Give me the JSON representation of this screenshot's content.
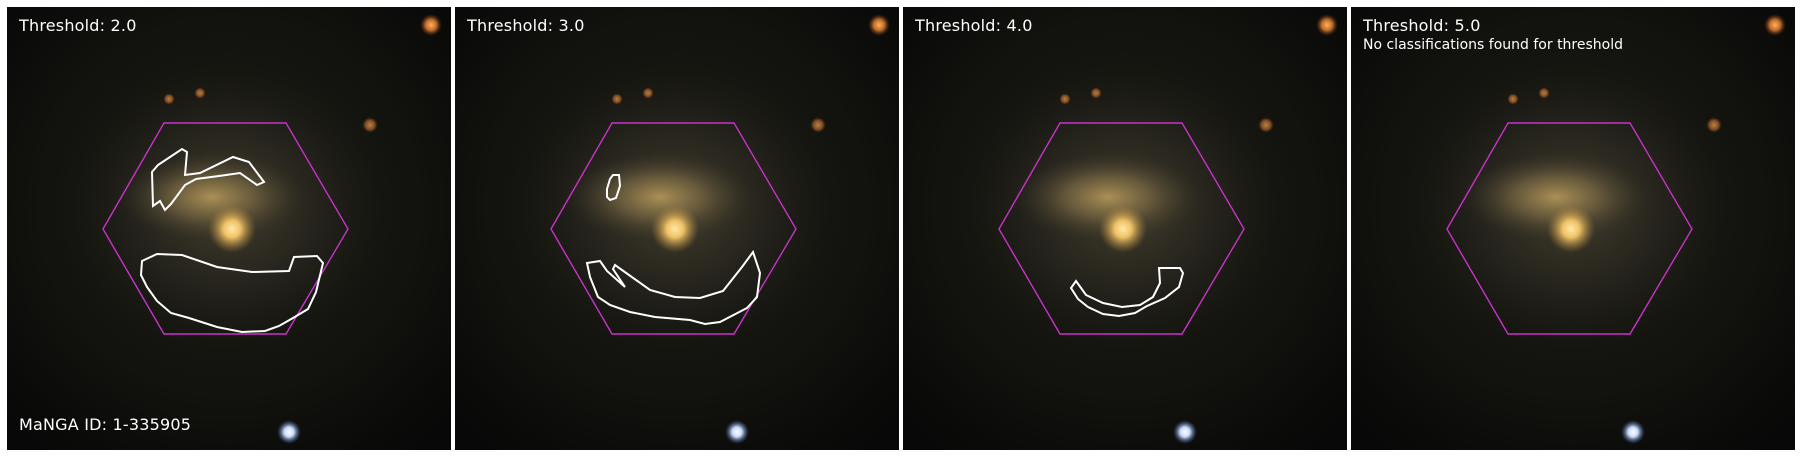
{
  "panels": [
    {
      "threshold_label": "Threshold: 2.0",
      "note": "",
      "id_label": "MaNGA ID: 1-335905"
    },
    {
      "threshold_label": "Threshold: 3.0",
      "note": "",
      "id_label": ""
    },
    {
      "threshold_label": "Threshold: 4.0",
      "note": "",
      "id_label": ""
    },
    {
      "threshold_label": "Threshold: 5.0",
      "note": "No classifications found for threshold",
      "id_label": ""
    }
  ],
  "colors": {
    "hexagon": "#c832c8",
    "contour": "#ffffff",
    "background": "#ffffff"
  }
}
